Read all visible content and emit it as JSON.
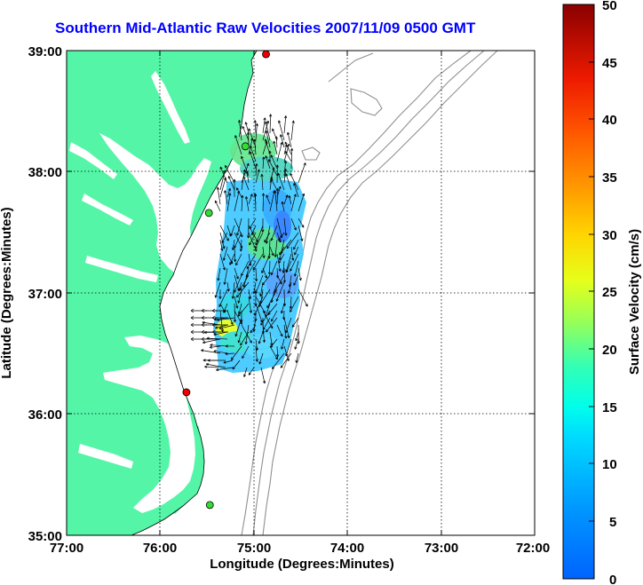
{
  "title": "Southern Mid-Atlantic Raw Velocities 2007/11/09 0500 GMT",
  "x_axis": {
    "label": "Longitude (Degrees:Minutes)",
    "ticks": [
      "77:00",
      "76:00",
      "75:00",
      "74:00",
      "73:00",
      "72:00"
    ]
  },
  "y_axis": {
    "label": "Latitude (Degrees:Minutes)",
    "ticks": [
      "39:00",
      "38:00",
      "37:00",
      "36:00",
      "35:00"
    ]
  },
  "colorbar": {
    "label": "Surface Velocity (cm/s)",
    "ticks": [
      "50",
      "45",
      "40",
      "35",
      "30",
      "25",
      "20",
      "15",
      "10",
      "5",
      "0"
    ],
    "min": 0,
    "max": 50
  },
  "colors": {
    "land": "#55f5a8",
    "water": "#ffffff",
    "bathymetry": "#909090",
    "title": "#0000ff",
    "station_green": "#33dd33",
    "station_red": "#ee0000"
  },
  "map_extent": {
    "lon_min": -77,
    "lon_max": -72,
    "lat_min": 35,
    "lat_max": 39
  },
  "grid": true,
  "stations": [
    {
      "lon": -74.87,
      "lat": 38.97,
      "color": "red"
    },
    {
      "lon": -75.09,
      "lat": 38.21,
      "color": "green"
    },
    {
      "lon": -75.48,
      "lat": 37.66,
      "color": "green"
    },
    {
      "lon": -75.72,
      "lat": 36.18,
      "color": "red"
    },
    {
      "lon": -75.47,
      "lat": 35.25,
      "color": "green"
    }
  ]
}
